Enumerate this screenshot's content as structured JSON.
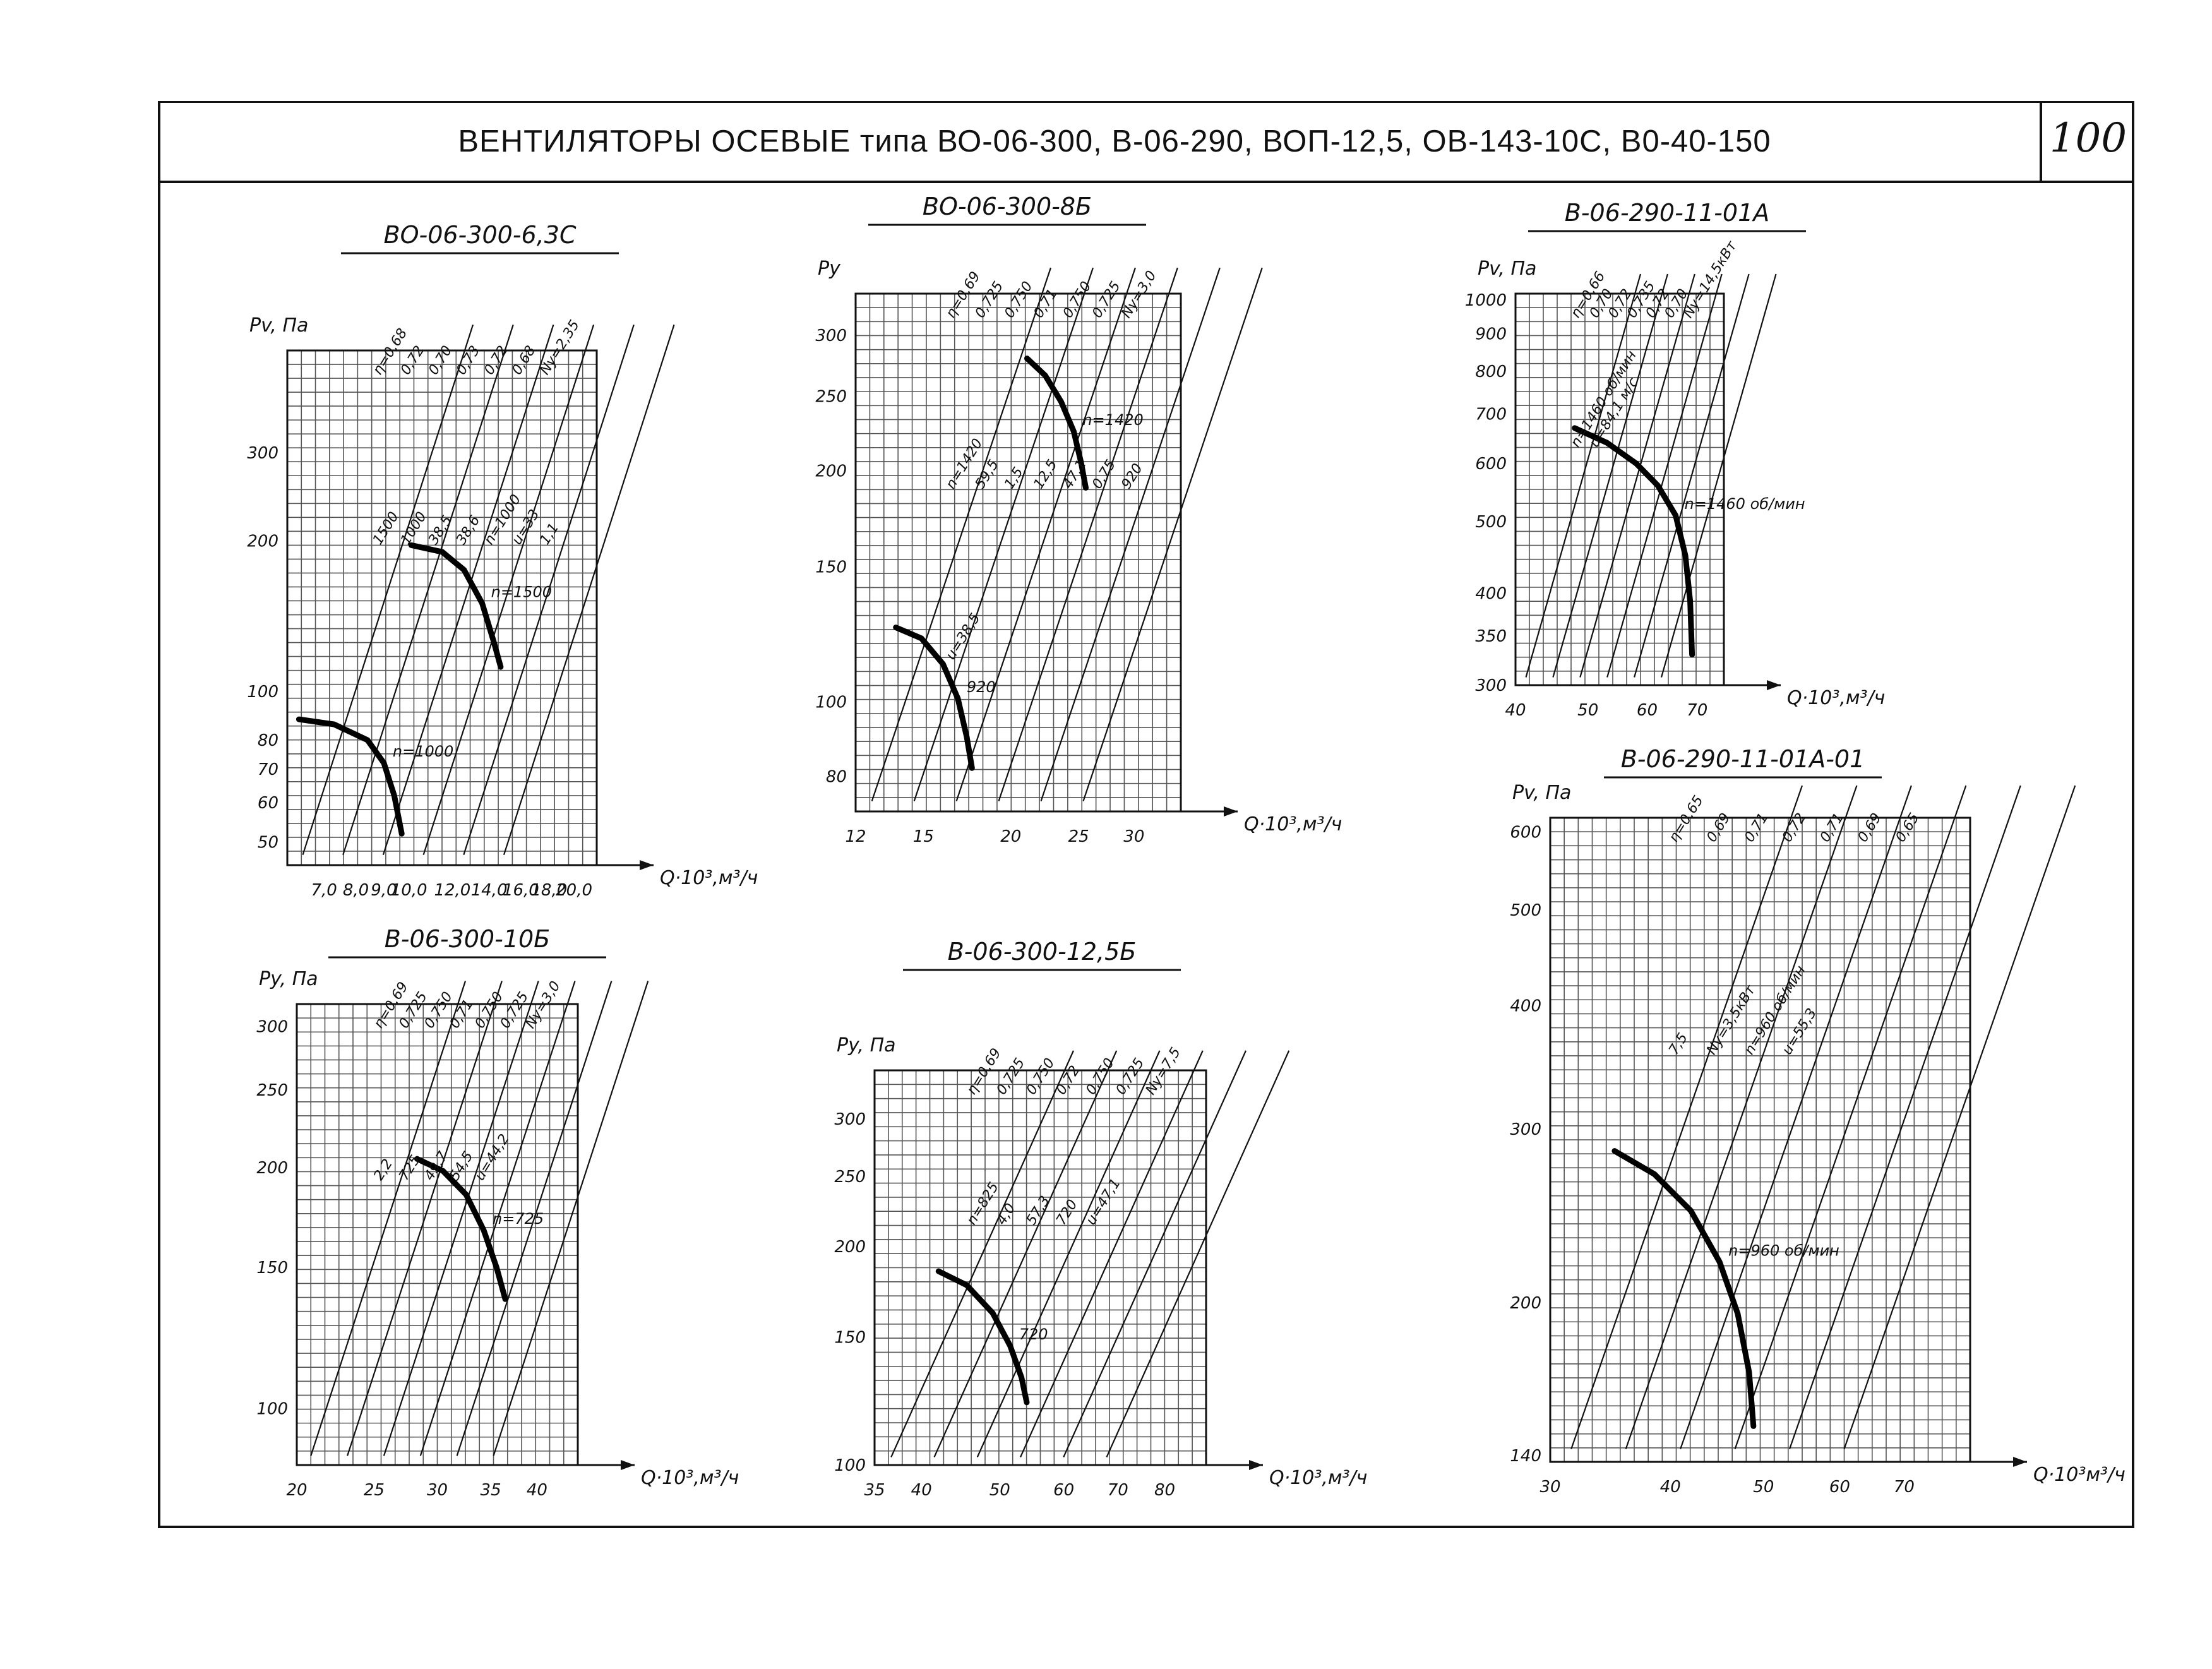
{
  "header": {
    "title": "ВЕНТИЛЯТОРЫ ОСЕВЫЕ типа ВО-06-300, В-06-290, ВОП-12,5, ОВ-143-10С, В0-40-150",
    "page_number": "100"
  },
  "chart_data": [
    {
      "type": "line",
      "title": "ВО-06-300-6,3С",
      "ylabel": "Pv, Па",
      "xlabel": "Q·10³,м³/ч",
      "x_scale": "log",
      "y_scale": "log",
      "xlim": [
        6,
        22
      ],
      "ylim": [
        45,
        480
      ],
      "x_ticks": [
        "7,0",
        "8,0",
        "9,0",
        "10,0",
        "12,0",
        "14,0",
        "16,0",
        "18,0",
        "20,0"
      ],
      "x_tick_values": [
        7,
        8,
        9,
        10,
        12,
        14,
        16,
        18,
        20
      ],
      "y_ticks": [
        "300",
        "200",
        "100",
        "80",
        "70",
        "60",
        "50"
      ],
      "y_tick_values": [
        300,
        200,
        100,
        80,
        70,
        60,
        50
      ],
      "grid": true,
      "curves": [
        {
          "label": "n=1500",
          "points": [
            [
              10.1,
              196
            ],
            [
              11.5,
              190
            ],
            [
              12.6,
              175
            ],
            [
              13.6,
              150
            ],
            [
              14.3,
              125
            ],
            [
              14.7,
              112
            ]
          ]
        },
        {
          "label": "n=1000",
          "points": [
            [
              6.3,
              88
            ],
            [
              7.3,
              86
            ],
            [
              8.4,
              80
            ],
            [
              9.0,
              72
            ],
            [
              9.4,
              62
            ],
            [
              9.7,
              52
            ]
          ]
        }
      ],
      "annotations": [
        "η=0,68",
        "0,72",
        "0,70",
        "0,73",
        "0,72",
        "0,68",
        "Nу=2,35",
        "1500",
        "1000",
        "38,5",
        "38,6",
        "n=1000",
        "u=33",
        "1,1"
      ]
    },
    {
      "type": "line",
      "title": "ВО-06-300-8Б",
      "ylabel": "Py",
      "xlabel": "Q·10³,м³/ч",
      "x_scale": "log",
      "y_scale": "log",
      "xlim": [
        12,
        35
      ],
      "ylim": [
        72,
        340
      ],
      "x_ticks": [
        "12",
        "15",
        "20",
        "25",
        "30"
      ],
      "x_tick_values": [
        12,
        15,
        20,
        25,
        30
      ],
      "y_ticks": [
        "300",
        "250",
        "200",
        "150",
        "100",
        "80"
      ],
      "y_tick_values": [
        300,
        250,
        200,
        150,
        100,
        80
      ],
      "grid": true,
      "curves": [
        {
          "label": "n=1420",
          "points": [
            [
              21.1,
              280
            ],
            [
              22.4,
              266
            ],
            [
              23.6,
              246
            ],
            [
              24.6,
              225
            ],
            [
              25.2,
              205
            ],
            [
              25.6,
              190
            ]
          ]
        },
        {
          "label": "920",
          "points": [
            [
              13.7,
              125
            ],
            [
              14.9,
              121
            ],
            [
              16.0,
              112
            ],
            [
              16.8,
              101
            ],
            [
              17.3,
              90
            ],
            [
              17.6,
              82
            ]
          ]
        }
      ],
      "annotations": [
        "η=0,69",
        "0,725",
        "0,750",
        "0,71",
        "0,750",
        "0,725",
        "Nу=3,0",
        "n=1420",
        "59,5",
        "1,5",
        "12,5",
        "47,1",
        "0,75",
        "920",
        "u=38,5"
      ]
    },
    {
      "type": "line",
      "title": "В-06-290-11-01А",
      "ylabel": "Pv, Па",
      "xlabel": "Q·10³,м³/ч",
      "x_scale": "log",
      "y_scale": "log",
      "xlim": [
        40,
        76
      ],
      "ylim": [
        300,
        1020
      ],
      "x_ticks": [
        "40",
        "50",
        "60",
        "70"
      ],
      "x_tick_values": [
        40,
        50,
        60,
        70
      ],
      "y_ticks": [
        "1000",
        "900",
        "800",
        "700",
        "600",
        "500",
        "400",
        "350",
        "300"
      ],
      "y_tick_values": [
        1000,
        900,
        800,
        700,
        600,
        500,
        400,
        350,
        300
      ],
      "grid": true,
      "curves": [
        {
          "label": "n=1460 об/мин",
          "points": [
            [
              48,
              670
            ],
            [
              53,
              640
            ],
            [
              58,
              600
            ],
            [
              62,
              560
            ],
            [
              65.5,
              510
            ],
            [
              67.5,
              450
            ],
            [
              68.5,
              390
            ],
            [
              68.9,
              330
            ]
          ]
        }
      ],
      "annotations": [
        "η=0,66",
        "0,70",
        "0,72",
        "0,735",
        "0,72",
        "0,70",
        "Nу=14,5кВт",
        "n=1460 об/мин",
        "u=84,1 м/с"
      ]
    },
    {
      "type": "line",
      "title": "В-06-290-11-01А-01",
      "ylabel": "Pv, Па",
      "xlabel": "Q·10³м³/ч",
      "x_scale": "log",
      "y_scale": "log",
      "xlim": [
        30,
        82
      ],
      "ylim": [
        138,
        620
      ],
      "x_ticks": [
        "30",
        "40",
        "50",
        "60",
        "70"
      ],
      "x_tick_values": [
        30,
        40,
        50,
        60,
        70
      ],
      "y_ticks": [
        "600",
        "500",
        "400",
        "300",
        "200",
        "140"
      ],
      "y_tick_values": [
        600,
        500,
        400,
        300,
        200,
        140
      ],
      "grid": true,
      "curves": [
        {
          "label": "n=960 об/мин",
          "points": [
            [
              35,
              285
            ],
            [
              38.5,
              270
            ],
            [
              42,
              248
            ],
            [
              45,
              220
            ],
            [
              47,
              195
            ],
            [
              48.3,
              170
            ],
            [
              48.8,
              150
            ]
          ]
        }
      ],
      "annotations": [
        "η=0,65",
        "0,69",
        "0,71",
        "0,72",
        "0,71",
        "0,69",
        "0,65",
        "7,5",
        "Nу=3,5кВт",
        "n=960 об/мин",
        "u=55,3"
      ]
    },
    {
      "type": "line",
      "title": "В-06-300-10Б",
      "ylabel": "Py, Па",
      "xlabel": "Q·10³,м³/ч",
      "x_scale": "log",
      "y_scale": "log",
      "xlim": [
        20,
        45
      ],
      "ylim": [
        85,
        320
      ],
      "x_ticks": [
        "20",
        "25",
        "30",
        "35",
        "40"
      ],
      "x_tick_values": [
        20,
        25,
        30,
        35,
        40
      ],
      "y_ticks": [
        "300",
        "250",
        "200",
        "150",
        "100"
      ],
      "y_tick_values": [
        300,
        250,
        200,
        150,
        100
      ],
      "grid": true,
      "curves": [
        {
          "label": "n=725",
          "points": [
            [
              28.3,
              205
            ],
            [
              30.5,
              198
            ],
            [
              32.6,
              185
            ],
            [
              34.3,
              167
            ],
            [
              35.6,
              150
            ],
            [
              36.5,
              137
            ]
          ]
        }
      ],
      "annotations": [
        "η=0,69",
        "0,725",
        "0,750",
        "0,71",
        "0,750",
        "0,725",
        "Nу=3,0",
        "2,2",
        "725",
        "49,7",
        "54,5",
        "u=44,2"
      ]
    },
    {
      "type": "line",
      "title": "В-06-300-12,5Б",
      "ylabel": "Py, Па",
      "xlabel": "Q·10³,м³/ч",
      "x_scale": "log",
      "y_scale": "log",
      "xlim": [
        35,
        90
      ],
      "ylim": [
        100,
        350
      ],
      "x_ticks": [
        "35",
        "40",
        "50",
        "60",
        "70",
        "80"
      ],
      "x_tick_values": [
        35,
        40,
        50,
        60,
        70,
        80
      ],
      "y_ticks": [
        "300",
        "250",
        "200",
        "150",
        "100"
      ],
      "y_tick_values": [
        300,
        250,
        200,
        150,
        100
      ],
      "grid": true,
      "curves": [
        {
          "label": "720",
          "points": [
            [
              42,
              185
            ],
            [
              45.5,
              177
            ],
            [
              49,
              162
            ],
            [
              51.5,
              146
            ],
            [
              53.2,
              132
            ],
            [
              54,
              122
            ]
          ]
        }
      ],
      "annotations": [
        "η=0,69",
        "0,725",
        "0,750",
        "0,72",
        "0,750",
        "0,725",
        "Nу=7,5",
        "n=825",
        "4,0",
        "57,3",
        "720",
        "u=47,1"
      ]
    }
  ]
}
